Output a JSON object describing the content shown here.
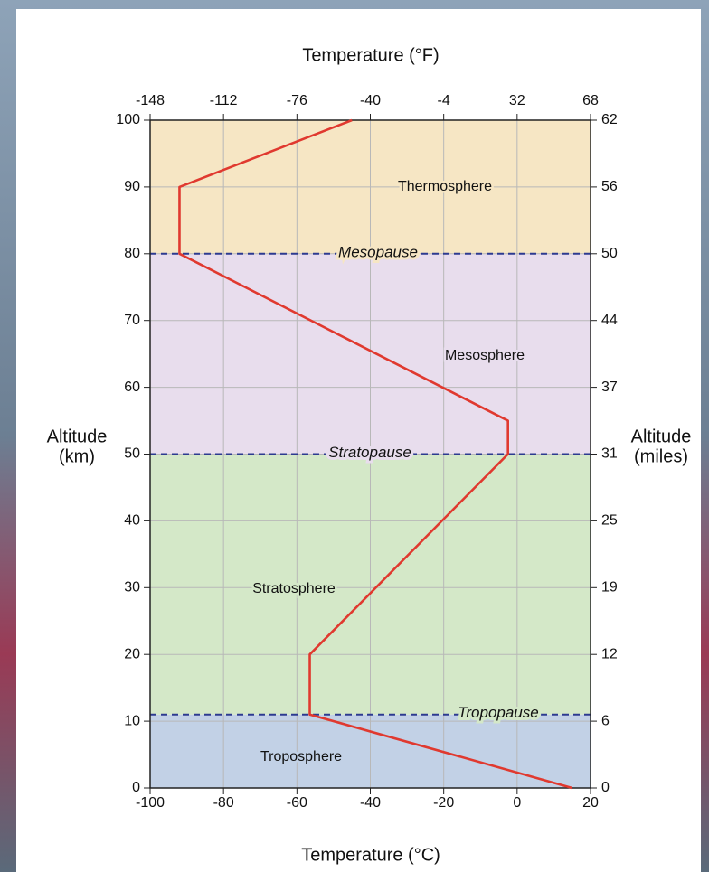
{
  "chart_data": {
    "type": "line",
    "x_label": "Temperature (°C)",
    "x2_label": "Temperature (°F)",
    "ylabel_lines": [
      "Altitude",
      "(km)"
    ],
    "y2label_lines": [
      "Altitude",
      "(miles)"
    ],
    "x": [
      15,
      -56.5,
      -56.5,
      -2.5,
      -2.5,
      -92,
      -92,
      -45
    ],
    "values": [
      0,
      11,
      20,
      50,
      55,
      80,
      90,
      100
    ],
    "color": "#e0392f",
    "xlim": [
      -100,
      20
    ],
    "xticks": [
      -100,
      -80,
      -60,
      -40,
      -20,
      0,
      20
    ],
    "x2lim": [
      -148,
      68
    ],
    "x2ticks": [
      -148,
      -112,
      -76,
      -40,
      -4,
      32,
      68
    ],
    "ylim": [
      0,
      100
    ],
    "yticks": [
      0,
      10,
      20,
      30,
      40,
      50,
      60,
      70,
      80,
      90,
      100
    ],
    "y2lim": [
      0,
      62.137
    ],
    "y2ticks": [
      {
        "value": 0,
        "label": "0"
      },
      {
        "value": 6.214,
        "label": "6"
      },
      {
        "value": 12.427,
        "label": "12"
      },
      {
        "value": 18.641,
        "label": "19"
      },
      {
        "value": 24.855,
        "label": "25"
      },
      {
        "value": 31.069,
        "label": "31"
      },
      {
        "value": 37.282,
        "label": "37"
      },
      {
        "value": 43.496,
        "label": "44"
      },
      {
        "value": 49.71,
        "label": "50"
      },
      {
        "value": 55.923,
        "label": "56"
      },
      {
        "value": 62.137,
        "label": "62"
      }
    ],
    "grid": true,
    "layers": [
      {
        "name": "Troposphere",
        "bottom": 0,
        "top": 11,
        "color": "#c2d1e6"
      },
      {
        "name": "Stratosphere",
        "bottom": 11,
        "top": 50,
        "color": "#d4e8c8"
      },
      {
        "name": "Mesosphere",
        "bottom": 50,
        "top": 80,
        "color": "#e8dded"
      },
      {
        "name": "Thermosphere",
        "bottom": 80,
        "top": 100,
        "color": "#f6e6c4"
      }
    ],
    "boundaries": [
      {
        "name": "Tropopause",
        "altitude": 11
      },
      {
        "name": "Stratopause",
        "altitude": 50
      },
      {
        "name": "Mesopause",
        "altitude": 80
      }
    ],
    "boundary_color": "#2c3a90"
  }
}
